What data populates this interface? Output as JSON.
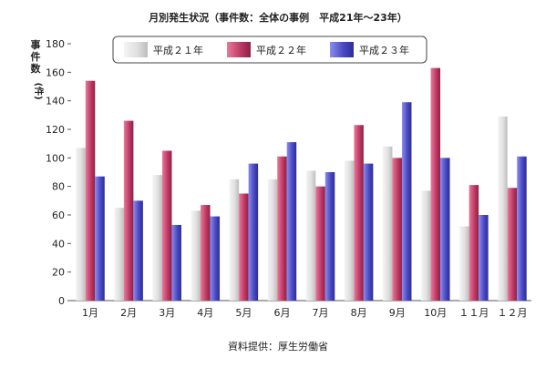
{
  "chart_data": {
    "type": "bar",
    "title": "月別発生状況（事件数：全体の事例　平成21年～23年）",
    "ylabel_chars": [
      "事",
      "件",
      "数",
      "(件)"
    ],
    "source": "資料提供：厚生労働省",
    "ylim": [
      0,
      180
    ],
    "yticks": [
      0,
      20,
      40,
      60,
      80,
      100,
      120,
      140,
      160,
      180
    ],
    "grid": false,
    "legend_position": "top",
    "categories": [
      "1月",
      "2月",
      "3月",
      "4月",
      "5月",
      "6月",
      "7月",
      "8月",
      "9月",
      "10月",
      "１１月",
      "１２月"
    ],
    "series": [
      {
        "name": "平成２１年",
        "color": "#d9d9d9",
        "values": [
          107,
          65,
          88,
          63,
          85,
          85,
          91,
          98,
          108,
          77,
          52,
          129
        ]
      },
      {
        "name": "平成２２年",
        "color": "#b8365f",
        "values": [
          154,
          126,
          105,
          67,
          75,
          101,
          80,
          123,
          100,
          163,
          81,
          79
        ]
      },
      {
        "name": "平成２３年",
        "color": "#4a4ab8",
        "values": [
          87,
          70,
          53,
          59,
          96,
          111,
          90,
          96,
          139,
          100,
          60,
          101
        ]
      }
    ]
  }
}
